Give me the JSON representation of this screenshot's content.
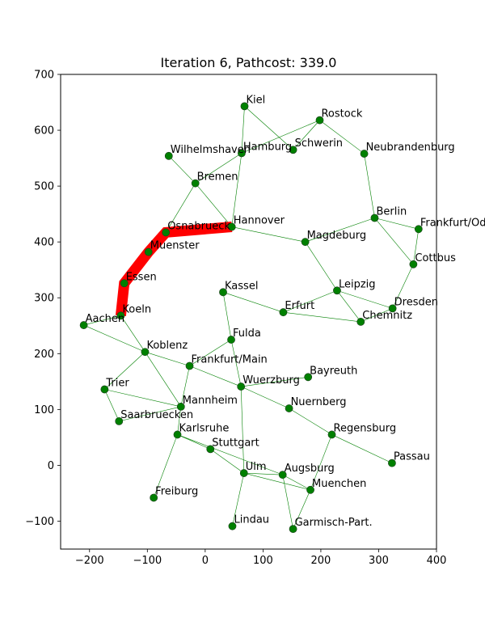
{
  "chart_data": {
    "type": "scatter",
    "title": "Iteration 6, Pathcost: 339.0",
    "xlabel": "",
    "ylabel": "",
    "xlim": [
      -250,
      400
    ],
    "ylim": [
      -150,
      700
    ],
    "xticks": [
      -200,
      -100,
      0,
      100,
      200,
      300,
      400
    ],
    "yticks": [
      -100,
      0,
      100,
      200,
      300,
      400,
      500,
      600,
      700
    ],
    "grid": false,
    "colors": {
      "node": "#008000",
      "edge": "#008000",
      "path": "#ff0000"
    },
    "nodes": [
      {
        "name": "Kiel",
        "x": 68,
        "y": 643
      },
      {
        "name": "Rostock",
        "x": 198,
        "y": 618
      },
      {
        "name": "Schwerin",
        "x": 152,
        "y": 565
      },
      {
        "name": "Hamburg",
        "x": 63,
        "y": 559
      },
      {
        "name": "Neubrandenburg",
        "x": 275,
        "y": 558
      },
      {
        "name": "Wilhelmshaven",
        "x": -63,
        "y": 554
      },
      {
        "name": "Bremen",
        "x": -17,
        "y": 505
      },
      {
        "name": "Berlin",
        "x": 293,
        "y": 443
      },
      {
        "name": "Frankfurt/Oder",
        "x": 369,
        "y": 423
      },
      {
        "name": "Hannover",
        "x": 46,
        "y": 427
      },
      {
        "name": "Osnabrueck",
        "x": -68,
        "y": 417
      },
      {
        "name": "Magdeburg",
        "x": 173,
        "y": 400
      },
      {
        "name": "Muenster",
        "x": -98,
        "y": 382
      },
      {
        "name": "Cottbus",
        "x": 360,
        "y": 360
      },
      {
        "name": "Essen",
        "x": -140,
        "y": 326
      },
      {
        "name": "Leipzig",
        "x": 228,
        "y": 313
      },
      {
        "name": "Kassel",
        "x": 31,
        "y": 310
      },
      {
        "name": "Dresden",
        "x": 324,
        "y": 281
      },
      {
        "name": "Erfurt",
        "x": 135,
        "y": 274
      },
      {
        "name": "Koeln",
        "x": -146,
        "y": 268
      },
      {
        "name": "Chemnitz",
        "x": 269,
        "y": 257
      },
      {
        "name": "Aachen",
        "x": -210,
        "y": 251
      },
      {
        "name": "Fulda",
        "x": 45,
        "y": 225
      },
      {
        "name": "Koblenz",
        "x": -104,
        "y": 203
      },
      {
        "name": "Frankfurt/Main",
        "x": -27,
        "y": 178
      },
      {
        "name": "Bayreuth",
        "x": 178,
        "y": 158
      },
      {
        "name": "Wuerzburg",
        "x": 62,
        "y": 141
      },
      {
        "name": "Trier",
        "x": -174,
        "y": 136
      },
      {
        "name": "Mannheim",
        "x": -42,
        "y": 105
      },
      {
        "name": "Nuernberg",
        "x": 145,
        "y": 102
      },
      {
        "name": "Saarbruecken",
        "x": -149,
        "y": 79
      },
      {
        "name": "Karlsruhe",
        "x": -48,
        "y": 55
      },
      {
        "name": "Regensburg",
        "x": 219,
        "y": 55
      },
      {
        "name": "Stuttgart",
        "x": 9,
        "y": 29
      },
      {
        "name": "Passau",
        "x": 323,
        "y": 4
      },
      {
        "name": "Ulm",
        "x": 67,
        "y": -14
      },
      {
        "name": "Augsburg",
        "x": 134,
        "y": -17
      },
      {
        "name": "Muenchen",
        "x": 182,
        "y": -44
      },
      {
        "name": "Freiburg",
        "x": -89,
        "y": -58
      },
      {
        "name": "Lindau",
        "x": 47,
        "y": -109
      },
      {
        "name": "Garmisch-Part.",
        "x": 152,
        "y": -114
      }
    ],
    "edges": [
      [
        "Kiel",
        "Hamburg"
      ],
      [
        "Kiel",
        "Schwerin"
      ],
      [
        "Hamburg",
        "Rostock"
      ],
      [
        "Hamburg",
        "Bremen"
      ],
      [
        "Hamburg",
        "Hannover"
      ],
      [
        "Rostock",
        "Schwerin"
      ],
      [
        "Rostock",
        "Neubrandenburg"
      ],
      [
        "Neubrandenburg",
        "Berlin"
      ],
      [
        "Wilhelmshaven",
        "Bremen"
      ],
      [
        "Bremen",
        "Hannover"
      ],
      [
        "Bremen",
        "Osnabrueck"
      ],
      [
        "Hannover",
        "Osnabrueck"
      ],
      [
        "Hannover",
        "Magdeburg"
      ],
      [
        "Osnabrueck",
        "Muenster"
      ],
      [
        "Muenster",
        "Essen"
      ],
      [
        "Essen",
        "Koeln"
      ],
      [
        "Koeln",
        "Aachen"
      ],
      [
        "Koeln",
        "Koblenz"
      ],
      [
        "Aachen",
        "Koblenz"
      ],
      [
        "Koblenz",
        "Trier"
      ],
      [
        "Koblenz",
        "Mannheim"
      ],
      [
        "Koblenz",
        "Frankfurt/Main"
      ],
      [
        "Trier",
        "Saarbruecken"
      ],
      [
        "Trier",
        "Mannheim"
      ],
      [
        "Saarbruecken",
        "Mannheim"
      ],
      [
        "Mannheim",
        "Frankfurt/Main"
      ],
      [
        "Mannheim",
        "Karlsruhe"
      ],
      [
        "Frankfurt/Main",
        "Fulda"
      ],
      [
        "Frankfurt/Main",
        "Wuerzburg"
      ],
      [
        "Fulda",
        "Kassel"
      ],
      [
        "Fulda",
        "Wuerzburg"
      ],
      [
        "Kassel",
        "Erfurt"
      ],
      [
        "Erfurt",
        "Leipzig"
      ],
      [
        "Erfurt",
        "Chemnitz"
      ],
      [
        "Magdeburg",
        "Berlin"
      ],
      [
        "Magdeburg",
        "Leipzig"
      ],
      [
        "Berlin",
        "Frankfurt/Oder"
      ],
      [
        "Berlin",
        "Cottbus"
      ],
      [
        "Frankfurt/Oder",
        "Cottbus"
      ],
      [
        "Cottbus",
        "Dresden"
      ],
      [
        "Dresden",
        "Chemnitz"
      ],
      [
        "Leipzig",
        "Chemnitz"
      ],
      [
        "Leipzig",
        "Dresden"
      ],
      [
        "Wuerzburg",
        "Bayreuth"
      ],
      [
        "Wuerzburg",
        "Nuernberg"
      ],
      [
        "Wuerzburg",
        "Ulm"
      ],
      [
        "Nuernberg",
        "Regensburg"
      ],
      [
        "Regensburg",
        "Passau"
      ],
      [
        "Regensburg",
        "Muenchen"
      ],
      [
        "Karlsruhe",
        "Stuttgart"
      ],
      [
        "Karlsruhe",
        "Freiburg"
      ],
      [
        "Karlsruhe",
        "Augsburg"
      ],
      [
        "Stuttgart",
        "Ulm"
      ],
      [
        "Ulm",
        "Augsburg"
      ],
      [
        "Ulm",
        "Muenchen"
      ],
      [
        "Ulm",
        "Lindau"
      ],
      [
        "Augsburg",
        "Muenchen"
      ],
      [
        "Augsburg",
        "Garmisch-Part."
      ],
      [
        "Muenchen",
        "Garmisch-Part."
      ]
    ],
    "path": [
      "Hannover",
      "Osnabrueck",
      "Muenster",
      "Essen",
      "Koeln"
    ]
  }
}
